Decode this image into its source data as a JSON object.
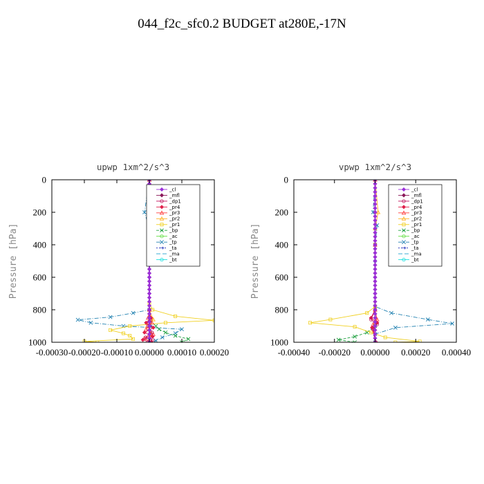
{
  "title": "044_f2c_sfc0.2  BUDGET at280E,-17N",
  "chart_data": [
    {
      "type": "line",
      "title": "upwp   1xm^2/s^3",
      "ylabel": "Pressure [hPa]",
      "xlabel": "",
      "xlim": [
        -0.0003,
        0.0002
      ],
      "ylim": [
        1000,
        0
      ],
      "x_ticks": [
        -0.0003,
        -0.0002,
        -0.0001,
        0.0,
        0.0001,
        0.0002
      ],
      "x_tick_labels": [
        "-0.00030",
        "-0.00020",
        "-0.00010",
        "0.00000",
        "0.00010",
        "0.00020"
      ],
      "y_ticks": [
        0,
        200,
        400,
        600,
        800,
        1000
      ],
      "y_tick_labels": [
        "0",
        "200",
        "400",
        "600",
        "800",
        "1000"
      ],
      "legend_position": "top-right",
      "series": [
        {
          "name": "_cl",
          "color": "#9b30d9",
          "marker": "diamond",
          "dash": "",
          "points": [
            [
              0.0,
              0
            ],
            [
              0.0,
              100
            ],
            [
              0.0,
              200
            ],
            [
              0.0,
              300
            ],
            [
              0.0,
              400
            ],
            [
              0.0,
              500
            ],
            [
              0.0,
              600
            ],
            [
              0.0,
              700
            ],
            [
              0.0,
              800
            ],
            [
              0.0,
              900
            ],
            [
              0.0,
              1000
            ]
          ]
        },
        {
          "name": "_mfl",
          "color": "#8b1a5a",
          "marker": "diamond",
          "dash": "",
          "points": [
            [
              0.0,
              0
            ],
            [
              0.0,
              100
            ],
            [
              0.0,
              200
            ],
            [
              0.0,
              300
            ],
            [
              0.0,
              400
            ],
            [
              0.0,
              500
            ],
            [
              0.0,
              600
            ],
            [
              0.0,
              700
            ],
            [
              0.0,
              800
            ],
            [
              0.0,
              900
            ],
            [
              0.0,
              1000
            ]
          ]
        },
        {
          "name": "_dp1",
          "color": "#c0105a",
          "marker": "circle",
          "dash": "",
          "points": [
            [
              0.0,
              0
            ],
            [
              0.0,
              400
            ],
            [
              0.0,
              800
            ],
            [
              3e-06,
              860
            ],
            [
              -4e-06,
              900
            ],
            [
              8e-06,
              940
            ],
            [
              -1.2e-05,
              970
            ],
            [
              1e-05,
              985
            ],
            [
              -5e-06,
              1000
            ]
          ]
        },
        {
          "name": "_pr4",
          "color": "#e0204a",
          "marker": "diamond",
          "dash": "",
          "points": [
            [
              0.0,
              0
            ],
            [
              0.0,
              400
            ],
            [
              0.0,
              800
            ],
            [
              5e-06,
              850
            ],
            [
              -1e-05,
              880
            ],
            [
              1.2e-05,
              910
            ],
            [
              -1.5e-05,
              940
            ],
            [
              1e-05,
              965
            ],
            [
              -2e-05,
              985
            ],
            [
              5e-06,
              1000
            ]
          ]
        },
        {
          "name": "_pr3",
          "color": "#ff4040",
          "marker": "triangle",
          "dash": "",
          "points": [
            [
              0.0,
              0
            ],
            [
              0.0,
              400
            ],
            [
              0.0,
              800
            ],
            [
              -4e-06,
              850
            ],
            [
              8e-06,
              880
            ],
            [
              -1e-05,
              920
            ],
            [
              1.2e-05,
              950
            ],
            [
              -1.5e-05,
              975
            ],
            [
              8e-06,
              1000
            ]
          ]
        },
        {
          "name": "_pr2",
          "color": "#ffb020",
          "marker": "triangle",
          "dash": "",
          "points": [
            [
              0.0,
              0
            ],
            [
              3e-06,
              200
            ],
            [
              0.0,
              400
            ],
            [
              0.0,
              800
            ],
            [
              1.2e-05,
              860
            ],
            [
              -6e-06,
              900
            ],
            [
              5e-06,
              950
            ],
            [
              0.0,
              1000
            ]
          ]
        },
        {
          "name": "_pr1",
          "color": "#f0d020",
          "marker": "square",
          "dash": "",
          "points": [
            [
              0.0,
              0
            ],
            [
              0.0,
              400
            ],
            [
              0.0,
              760
            ],
            [
              1e-05,
              800
            ],
            [
              8e-05,
              840
            ],
            [
              0.0002,
              865
            ],
            [
              5e-05,
              880
            ],
            [
              -6e-05,
              900
            ],
            [
              -0.00012,
              925
            ],
            [
              -8e-05,
              945
            ],
            [
              -6e-05,
              960
            ],
            [
              -5e-05,
              980
            ],
            [
              -0.0002,
              995
            ],
            [
              -0.00016,
              1000
            ]
          ]
        },
        {
          "name": "_bp",
          "color": "#20a040",
          "marker": "x",
          "dash": "4 2",
          "points": [
            [
              0.0,
              0
            ],
            [
              0.0,
              400
            ],
            [
              0.0,
              860
            ],
            [
              2e-05,
              900
            ],
            [
              3e-05,
              920
            ],
            [
              5e-05,
              940
            ],
            [
              8e-05,
              960
            ],
            [
              0.00012,
              980
            ],
            [
              0.0001,
              1000
            ]
          ]
        },
        {
          "name": "_ac",
          "color": "#60e040",
          "marker": "circle",
          "dash": "",
          "points": [
            [
              0.0,
              0
            ],
            [
              0.0,
              400
            ],
            [
              0.0,
              800
            ],
            [
              0.0,
              900
            ],
            [
              0.0,
              1000
            ]
          ]
        },
        {
          "name": "_tp",
          "color": "#2080b0",
          "marker": "x",
          "dash": "6 2 1 2",
          "points": [
            [
              0.0,
              0
            ],
            [
              -1.5e-05,
              200
            ],
            [
              0.0,
              300
            ],
            [
              0.0,
              400
            ],
            [
              0.0,
              800
            ],
            [
              -5e-05,
              820
            ],
            [
              -0.00012,
              845
            ],
            [
              -0.00022,
              862
            ],
            [
              -0.00018,
              880
            ],
            [
              -8e-05,
              900
            ],
            [
              0.0001,
              920
            ],
            [
              8e-05,
              945
            ],
            [
              4e-05,
              970
            ],
            [
              2e-05,
              990
            ],
            [
              0.0,
              1000
            ]
          ]
        },
        {
          "name": "_ta",
          "color": "#3040c0",
          "marker": "arrow",
          "dash": "2 2",
          "points": [
            [
              0.0,
              0
            ],
            [
              0.0,
              400
            ],
            [
              0.0,
              800
            ],
            [
              3e-06,
              900
            ],
            [
              0.0,
              1000
            ]
          ]
        },
        {
          "name": "_ma",
          "color": "#20a0d0",
          "marker": "none",
          "dash": "6 3",
          "points": [
            [
              0.0,
              0
            ],
            [
              0.0,
              500
            ],
            [
              0.0,
              1000
            ]
          ]
        },
        {
          "name": "_bt",
          "color": "#20e0e0",
          "marker": "circle",
          "dash": "",
          "points": [
            [
              0.0,
              0
            ],
            [
              0.0,
              500
            ],
            [
              0.0,
              1000
            ]
          ]
        }
      ]
    },
    {
      "type": "line",
      "title": "vpwp   1xm^2/s^3",
      "ylabel": "Pressure [hPa]",
      "xlabel": "",
      "xlim": [
        -0.0004,
        0.0004
      ],
      "ylim": [
        1000,
        0
      ],
      "x_ticks": [
        -0.0004,
        -0.0002,
        0.0,
        0.0002,
        0.0004
      ],
      "x_tick_labels": [
        "-0.00040",
        "-0.00020",
        "0.00000",
        "0.00020",
        "0.00040"
      ],
      "y_ticks": [
        0,
        200,
        400,
        600,
        800,
        1000
      ],
      "y_tick_labels": [
        "0",
        "200",
        "400",
        "600",
        "800",
        "1000"
      ],
      "legend_position": "top-right",
      "series": [
        {
          "name": "_cl",
          "color": "#9b30d9",
          "marker": "diamond",
          "dash": "",
          "points": [
            [
              0.0,
              0
            ],
            [
              0.0,
              100
            ],
            [
              0.0,
              200
            ],
            [
              0.0,
              300
            ],
            [
              0.0,
              400
            ],
            [
              0.0,
              500
            ],
            [
              0.0,
              600
            ],
            [
              0.0,
              700
            ],
            [
              0.0,
              800
            ],
            [
              0.0,
              900
            ],
            [
              0.0,
              1000
            ]
          ]
        },
        {
          "name": "_mfl",
          "color": "#8b1a5a",
          "marker": "diamond",
          "dash": "",
          "points": [
            [
              0.0,
              0
            ],
            [
              0.0,
              100
            ],
            [
              0.0,
              200
            ],
            [
              0.0,
              300
            ],
            [
              0.0,
              400
            ],
            [
              0.0,
              500
            ],
            [
              0.0,
              600
            ],
            [
              0.0,
              700
            ],
            [
              0.0,
              800
            ],
            [
              0.0,
              900
            ],
            [
              0.0,
              1000
            ]
          ]
        },
        {
          "name": "_dp1",
          "color": "#c0105a",
          "marker": "circle",
          "dash": "",
          "points": [
            [
              0.0,
              0
            ],
            [
              0.0,
              400
            ],
            [
              0.0,
              800
            ],
            [
              -2e-05,
              860
            ],
            [
              1e-05,
              890
            ],
            [
              -1e-05,
              920
            ],
            [
              0.0,
              1000
            ]
          ]
        },
        {
          "name": "_pr4",
          "color": "#e0204a",
          "marker": "diamond",
          "dash": "",
          "points": [
            [
              0.0,
              0
            ],
            [
              0.0,
              400
            ],
            [
              0.0,
              800
            ],
            [
              -2e-05,
              850
            ],
            [
              1e-05,
              880
            ],
            [
              -1.5e-05,
              910
            ],
            [
              5e-06,
              1000
            ]
          ]
        },
        {
          "name": "_pr3",
          "color": "#ff4040",
          "marker": "triangle",
          "dash": "",
          "points": [
            [
              0.0,
              0
            ],
            [
              0.0,
              400
            ],
            [
              0.0,
              800
            ],
            [
              1e-05,
              860
            ],
            [
              -1e-05,
              890
            ],
            [
              0.0,
              1000
            ]
          ]
        },
        {
          "name": "_pr2",
          "color": "#ffb020",
          "marker": "triangle",
          "dash": "",
          "points": [
            [
              0.0,
              0
            ],
            [
              1.5e-05,
              200
            ],
            [
              0.0,
              300
            ],
            [
              0.0,
              800
            ],
            [
              0.0,
              1000
            ]
          ]
        },
        {
          "name": "_pr1",
          "color": "#f0d020",
          "marker": "square",
          "dash": "",
          "points": [
            [
              0.0,
              0
            ],
            [
              0.0,
              400
            ],
            [
              0.0,
              780
            ],
            [
              -4e-05,
              820
            ],
            [
              -0.00022,
              860
            ],
            [
              -0.00032,
              880
            ],
            [
              -0.0001,
              905
            ],
            [
              -2e-05,
              940
            ],
            [
              5e-05,
              970
            ],
            [
              0.00022,
              995
            ],
            [
              0.0001,
              1000
            ]
          ]
        },
        {
          "name": "_bp",
          "color": "#20a040",
          "marker": "x",
          "dash": "4 2",
          "points": [
            [
              0.0,
              0
            ],
            [
              0.0,
              400
            ],
            [
              0.0,
              900
            ],
            [
              -4e-05,
              940
            ],
            [
              -0.0001,
              965
            ],
            [
              -0.00018,
              985
            ],
            [
              -0.0001,
              1000
            ]
          ]
        },
        {
          "name": "_ac",
          "color": "#60e040",
          "marker": "circle",
          "dash": "",
          "points": [
            [
              0.0,
              0
            ],
            [
              0.0,
              400
            ],
            [
              0.0,
              900
            ],
            [
              0.0,
              1000
            ]
          ]
        },
        {
          "name": "_tp",
          "color": "#2080b0",
          "marker": "x",
          "dash": "6 2 1 2",
          "points": [
            [
              0.0,
              0
            ],
            [
              -1e-05,
              200
            ],
            [
              1e-05,
              280
            ],
            [
              0.0,
              400
            ],
            [
              0.0,
              780
            ],
            [
              8e-05,
              820
            ],
            [
              0.00026,
              860
            ],
            [
              0.00038,
              885
            ],
            [
              0.0001,
              910
            ],
            [
              0.0,
              950
            ],
            [
              0.0,
              1000
            ]
          ]
        },
        {
          "name": "_ta",
          "color": "#3040c0",
          "marker": "arrow",
          "dash": "2 2",
          "points": [
            [
              0.0,
              0
            ],
            [
              0.0,
              400
            ],
            [
              0.0,
              1000
            ]
          ]
        },
        {
          "name": "_ma",
          "color": "#20a0d0",
          "marker": "none",
          "dash": "6 3",
          "points": [
            [
              0.0,
              0
            ],
            [
              0.0,
              500
            ],
            [
              0.0,
              1000
            ]
          ]
        },
        {
          "name": "_bt",
          "color": "#20e0e0",
          "marker": "circle",
          "dash": "",
          "points": [
            [
              0.0,
              0
            ],
            [
              0.0,
              500
            ],
            [
              0.0,
              1000
            ]
          ]
        }
      ]
    }
  ]
}
